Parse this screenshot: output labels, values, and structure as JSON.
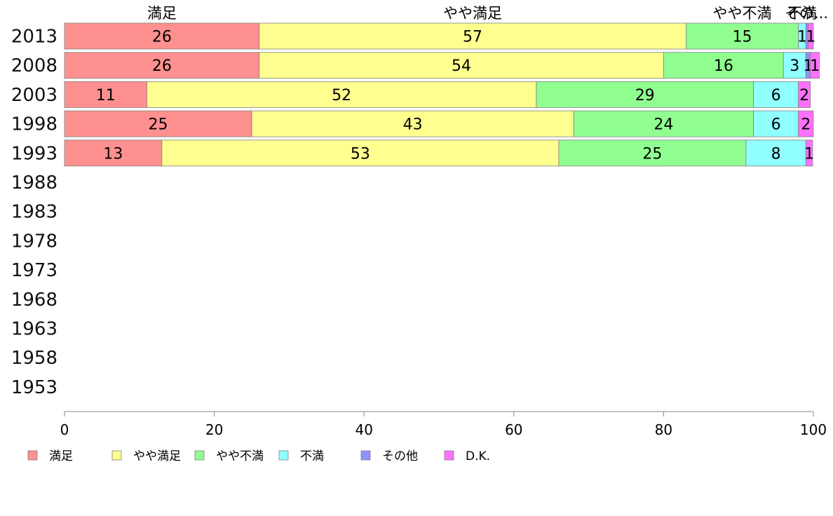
{
  "chart_data": {
    "type": "bar",
    "orientation": "horizontal",
    "stacked": true,
    "categories": [
      "2013",
      "2008",
      "2003",
      "1998",
      "1993",
      "1988",
      "1983",
      "1978",
      "1973",
      "1968",
      "1963",
      "1958",
      "1953"
    ],
    "series": [
      {
        "name": "満足",
        "color": "#ff9090",
        "values": [
          26,
          26,
          11,
          25,
          13,
          null,
          null,
          null,
          null,
          null,
          null,
          null,
          null
        ],
        "labels": [
          "26",
          "26",
          "11",
          "25",
          "13"
        ]
      },
      {
        "name": "やや満足",
        "color": "#ffff90",
        "values": [
          57,
          54,
          52,
          43,
          53,
          null,
          null,
          null,
          null,
          null,
          null,
          null,
          null
        ],
        "labels": [
          "57",
          "54",
          "52",
          "43",
          "53"
        ]
      },
      {
        "name": "やや不満",
        "color": "#90ff90",
        "values": [
          15,
          16,
          29,
          24,
          25,
          null,
          null,
          null,
          null,
          null,
          null,
          null,
          null
        ],
        "labels": [
          "15",
          "16",
          "29",
          "24",
          "25"
        ]
      },
      {
        "name": "不満",
        "color": "#90ffff",
        "values": [
          1,
          3,
          6,
          6,
          8,
          null,
          null,
          null,
          null,
          null,
          null,
          null,
          null
        ],
        "labels": [
          "1",
          "3",
          "6",
          "6",
          "8"
        ]
      },
      {
        "name": "その他",
        "color": "#9090ff",
        "values": [
          0.3,
          0.6,
          0,
          0,
          0,
          null,
          null,
          null,
          null,
          null,
          null,
          null,
          null
        ],
        "labels": [
          "",
          "1",
          "",
          "",
          ""
        ]
      },
      {
        "name": "D.K.",
        "color": "#ff70ff",
        "values": [
          0.7,
          1.2,
          1.6,
          2,
          0.9,
          null,
          null,
          null,
          null,
          null,
          null,
          null,
          null
        ],
        "labels": [
          "1",
          "1",
          "2",
          "2",
          "1"
        ]
      }
    ],
    "top_labels": [
      "満足",
      "やや満足",
      "やや不満",
      "不満",
      "その..."
    ],
    "xlim": [
      0,
      100
    ],
    "xticks": [
      "0",
      "20",
      "40",
      "60",
      "80",
      "100"
    ],
    "legend": {
      "position": "bottom",
      "labels": [
        "満足",
        "やや満足",
        "やや不満",
        "不満",
        "その他",
        "D.K."
      ]
    },
    "grid": false
  }
}
